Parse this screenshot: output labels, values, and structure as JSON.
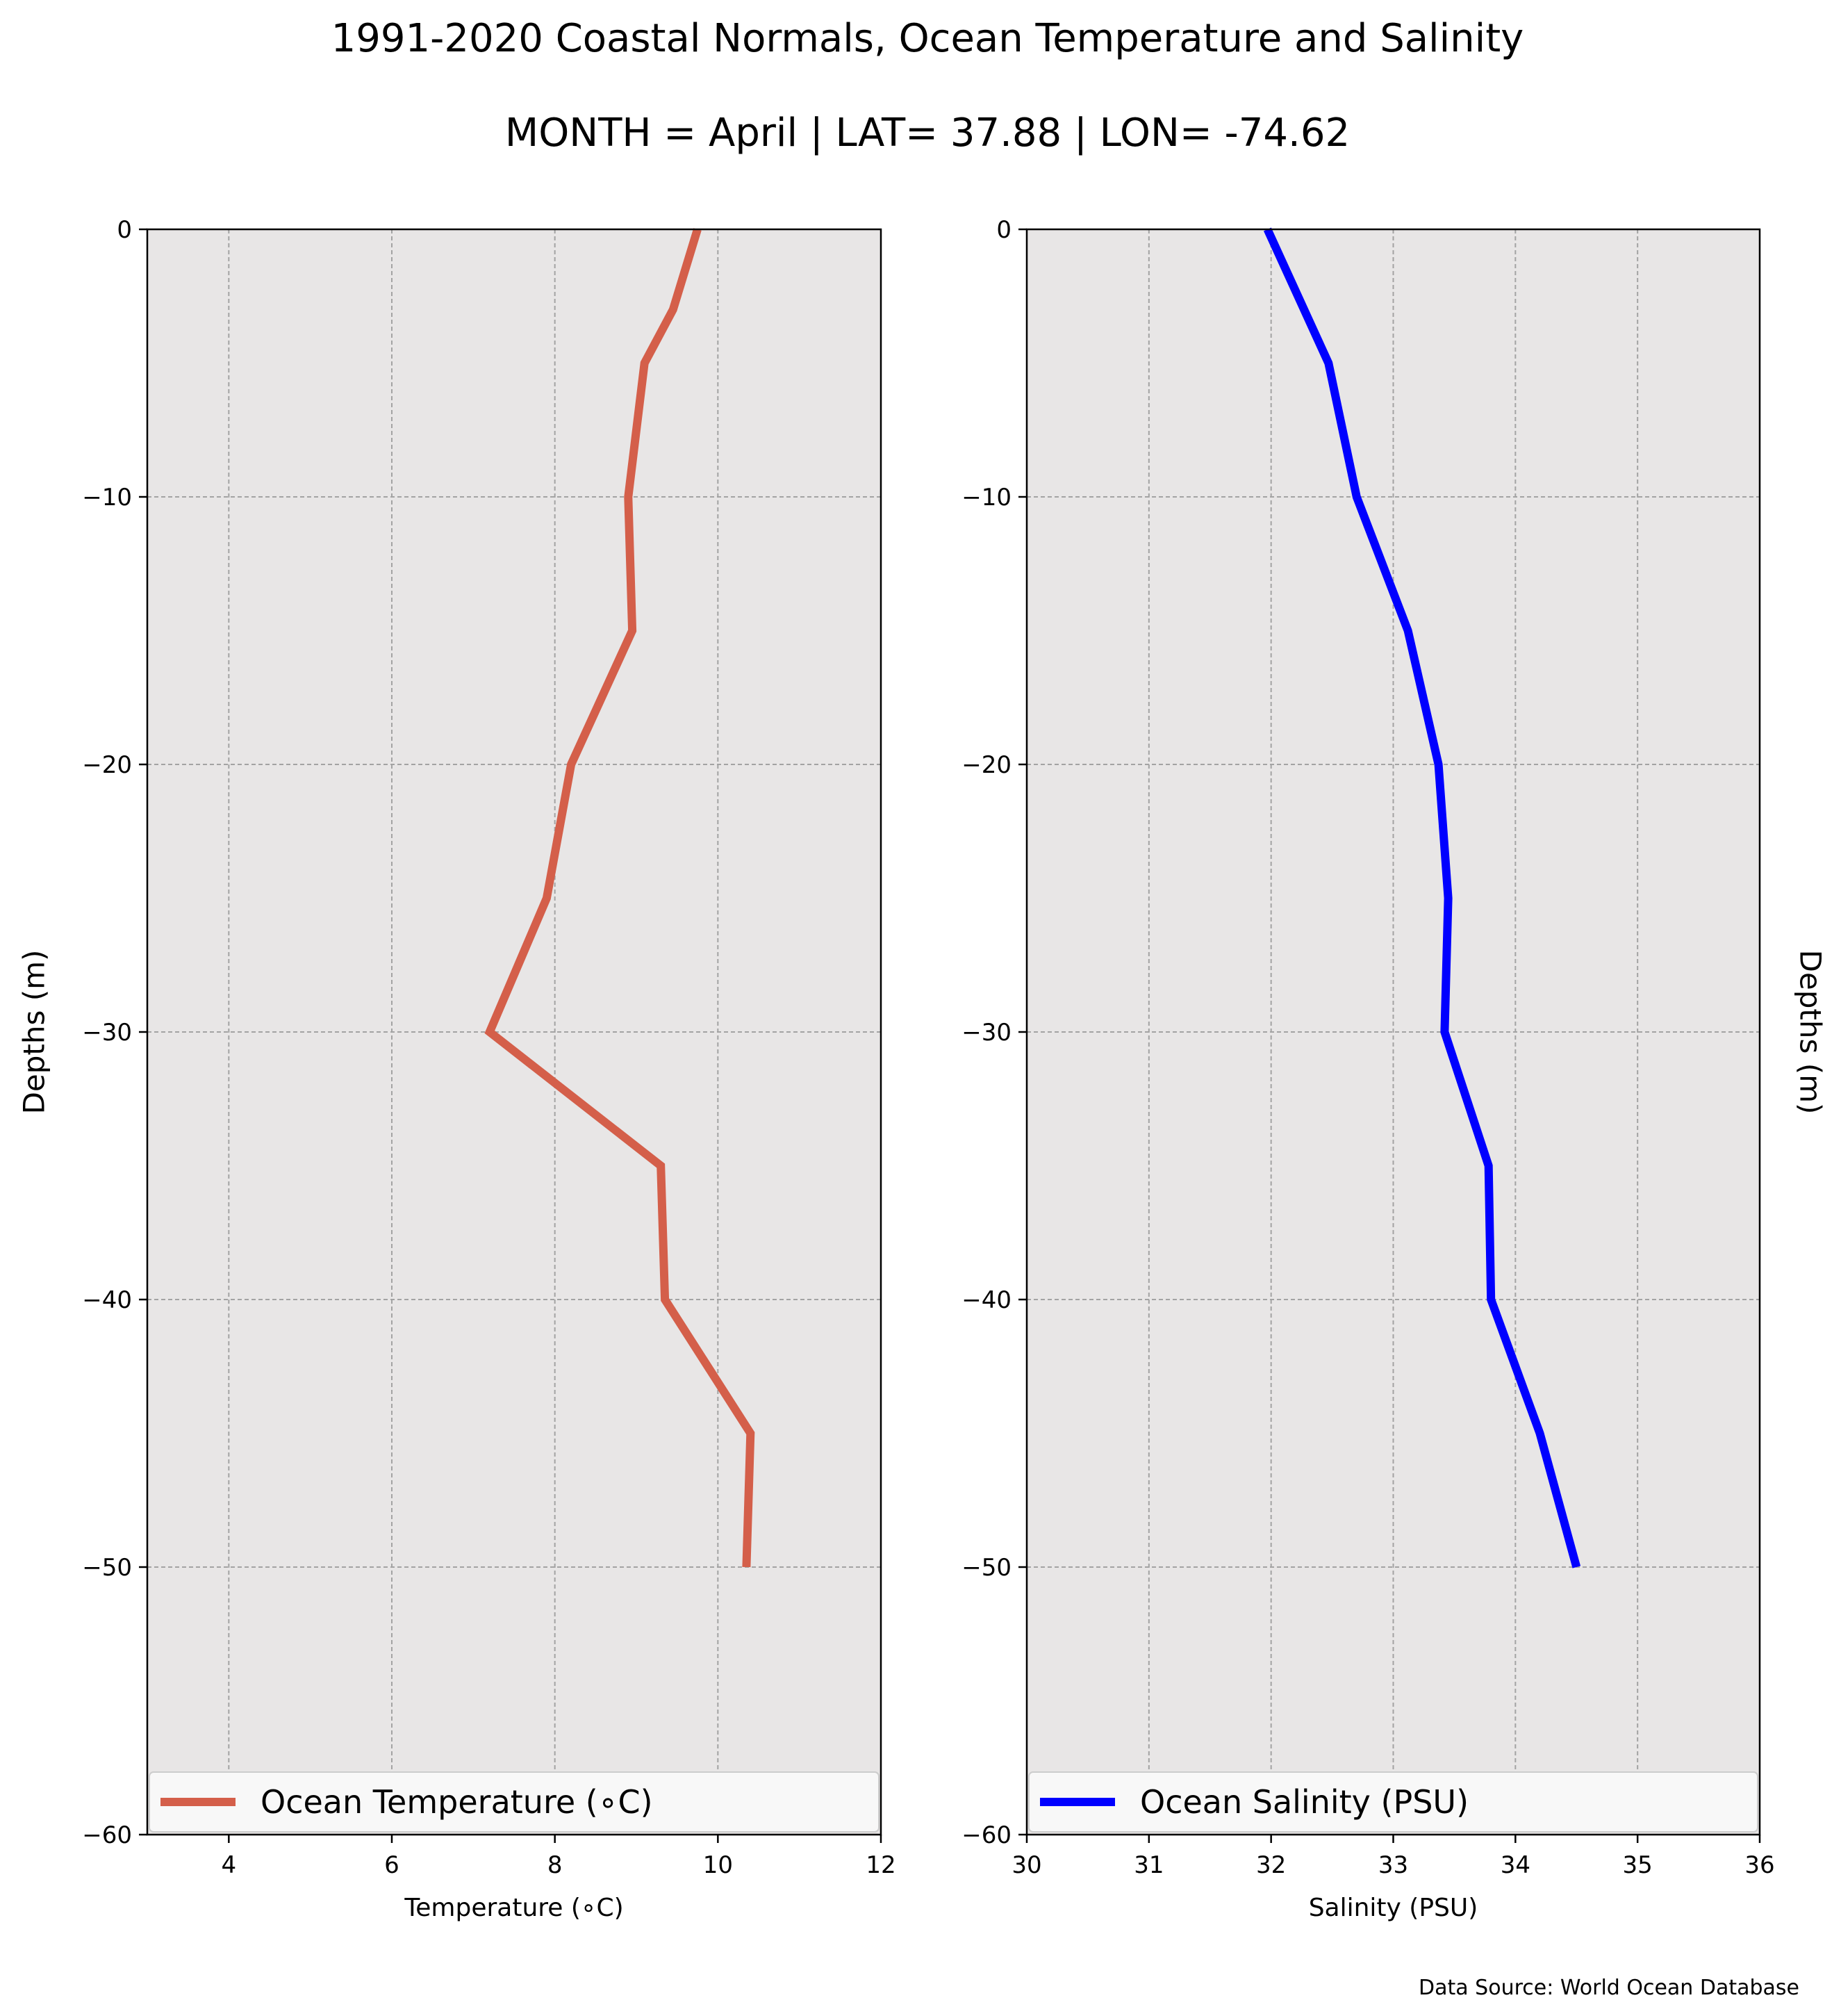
{
  "figure": {
    "title_line1": "1991-2020 Coastal Normals, Ocean Temperature and Salinity",
    "title_line2": "MONTH = April | LAT= 37.88 | LON= -74.62",
    "source": "Data Source: World Ocean Database"
  },
  "chart_data": [
    {
      "type": "line",
      "orientation": "vertical-profile",
      "xlabel": "Temperature (∘C)",
      "ylabel": "Depths (m)",
      "xlim": [
        3,
        12
      ],
      "ylim": [
        -60,
        0
      ],
      "xticks": [
        4,
        6,
        8,
        10,
        12
      ],
      "yticks": [
        0,
        -10,
        -20,
        -30,
        -40,
        -50,
        -60
      ],
      "xticklabels": [
        "4",
        "6",
        "8",
        "10",
        "12"
      ],
      "yticklabels": [
        "0",
        "−10",
        "−20",
        "−30",
        "−40",
        "−50",
        "−60"
      ],
      "grid": true,
      "legend_position": "bottom",
      "series": [
        {
          "name": "Ocean Temperature (∘C)",
          "color": "#d45f4a",
          "x": [
            9.75,
            9.45,
            9.1,
            8.9,
            8.95,
            8.2,
            7.9,
            7.2,
            9.3,
            9.35,
            10.4,
            10.35
          ],
          "y": [
            0,
            -3,
            -5,
            -10,
            -15,
            -20,
            -25,
            -30,
            -35,
            -40,
            -45,
            -50
          ]
        }
      ]
    },
    {
      "type": "line",
      "orientation": "vertical-profile",
      "xlabel": "Salinity (PSU)",
      "ylabel": "Depths (m)",
      "xlim": [
        30,
        36
      ],
      "ylim": [
        -60,
        0
      ],
      "xticks": [
        30,
        31,
        32,
        33,
        34,
        35,
        36
      ],
      "yticks": [
        0,
        -10,
        -20,
        -30,
        -40,
        -50,
        -60
      ],
      "xticklabels": [
        "30",
        "31",
        "32",
        "33",
        "34",
        "35",
        "36"
      ],
      "yticklabels": [
        "0",
        "−10",
        "−20",
        "−30",
        "−40",
        "−50",
        "−60"
      ],
      "grid": true,
      "legend_position": "bottom",
      "series": [
        {
          "name": "Ocean Salinity (PSU)",
          "color": "#0000ff",
          "x": [
            31.97,
            32.47,
            32.7,
            33.12,
            33.37,
            33.45,
            33.42,
            33.78,
            33.8,
            34.2,
            34.5
          ],
          "y": [
            0,
            -5,
            -10,
            -15,
            -20,
            -25,
            -30,
            -35,
            -40,
            -45,
            -50
          ]
        }
      ]
    }
  ]
}
